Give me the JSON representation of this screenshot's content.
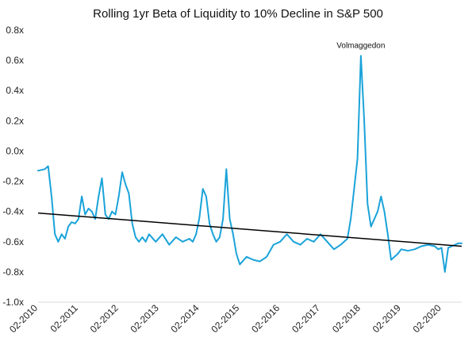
{
  "chart_data": {
    "type": "line",
    "title": "Rolling 1yr Beta of Liquidity to 10% Decline in S&P 500",
    "xlabel": "",
    "ylabel": "",
    "ylim": [
      -1.0,
      0.8
    ],
    "xlim": [
      "2010-02",
      "2020-08"
    ],
    "y_ticks": [
      0.8,
      0.6,
      0.4,
      0.2,
      0.0,
      -0.2,
      -0.4,
      -0.6,
      -0.8,
      -1.0
    ],
    "y_tick_labels": [
      "0.8x",
      "0.6x",
      "0.4x",
      "0.2x",
      "0.0x",
      "-0.2x",
      "-0.4x",
      "-0.6x",
      "-0.8x",
      "-1.0x"
    ],
    "x_ticks": [
      "2010-02",
      "2011-02",
      "2012-02",
      "2013-02",
      "2014-02",
      "2015-02",
      "2016-02",
      "2017-02",
      "2018-02",
      "2019-02",
      "2020-02"
    ],
    "x_tick_labels": [
      "02-2010",
      "02-2011",
      "02-2012",
      "02-2013",
      "02-2014",
      "02-2015",
      "02-2016",
      "02-2017",
      "02-2018",
      "02-2019",
      "02-2020"
    ],
    "grid": false,
    "legend": "none",
    "series": [
      {
        "color": "#1aa3d9",
        "x": [
          "2010-02",
          "2010-04",
          "2010-05",
          "2010-06",
          "2010-07",
          "2010-08",
          "2010-09",
          "2010-10",
          "2010-11",
          "2010-12",
          "2011-01",
          "2011-02",
          "2011-03",
          "2011-04",
          "2011-05",
          "2011-06",
          "2011-07",
          "2011-08",
          "2011-09",
          "2011-10",
          "2011-11",
          "2011-12",
          "2012-01",
          "2012-02",
          "2012-03",
          "2012-04",
          "2012-05",
          "2012-06",
          "2012-07",
          "2012-08",
          "2012-09",
          "2012-10",
          "2012-11",
          "2013-01",
          "2013-03",
          "2013-05",
          "2013-07",
          "2013-09",
          "2013-11",
          "2013-12",
          "2014-01",
          "2014-02",
          "2014-03",
          "2014-04",
          "2014-05",
          "2014-06",
          "2014-07",
          "2014-08",
          "2014-09",
          "2014-10",
          "2014-11",
          "2014-12",
          "2015-01",
          "2015-02",
          "2015-04",
          "2015-06",
          "2015-08",
          "2015-10",
          "2015-12",
          "2016-02",
          "2016-04",
          "2016-06",
          "2016-08",
          "2016-10",
          "2016-12",
          "2017-02",
          "2017-04",
          "2017-06",
          "2017-08",
          "2017-10",
          "2017-11",
          "2017-12",
          "2018-01",
          "2018-02",
          "2018-03",
          "2018-04",
          "2018-05",
          "2018-06",
          "2018-07",
          "2018-08",
          "2018-09",
          "2018-10",
          "2018-11",
          "2018-12",
          "2019-01",
          "2019-02",
          "2019-04",
          "2019-06",
          "2019-08",
          "2019-10",
          "2019-12",
          "2020-01",
          "2020-02",
          "2020-03",
          "2020-04",
          "2020-05",
          "2020-06",
          "2020-07",
          "2020-08"
        ],
        "values": [
          -0.13,
          -0.12,
          -0.1,
          -0.3,
          -0.55,
          -0.6,
          -0.55,
          -0.58,
          -0.5,
          -0.47,
          -0.48,
          -0.45,
          -0.3,
          -0.42,
          -0.38,
          -0.4,
          -0.45,
          -0.3,
          -0.18,
          -0.42,
          -0.45,
          -0.4,
          -0.42,
          -0.3,
          -0.14,
          -0.22,
          -0.28,
          -0.48,
          -0.57,
          -0.6,
          -0.57,
          -0.6,
          -0.55,
          -0.6,
          -0.55,
          -0.62,
          -0.57,
          -0.6,
          -0.58,
          -0.6,
          -0.55,
          -0.44,
          -0.25,
          -0.3,
          -0.48,
          -0.55,
          -0.6,
          -0.57,
          -0.45,
          -0.12,
          -0.45,
          -0.55,
          -0.68,
          -0.75,
          -0.7,
          -0.72,
          -0.73,
          -0.7,
          -0.62,
          -0.6,
          -0.55,
          -0.6,
          -0.62,
          -0.58,
          -0.6,
          -0.55,
          -0.6,
          -0.65,
          -0.62,
          -0.58,
          -0.45,
          -0.25,
          -0.05,
          0.63,
          0.2,
          -0.35,
          -0.5,
          -0.45,
          -0.4,
          -0.3,
          -0.4,
          -0.55,
          -0.72,
          -0.7,
          -0.68,
          -0.65,
          -0.66,
          -0.65,
          -0.63,
          -0.62,
          -0.63,
          -0.65,
          -0.64,
          -0.8,
          -0.64,
          -0.63,
          -0.62,
          -0.61,
          -0.61
        ]
      }
    ],
    "trendline": {
      "color": "#000000",
      "x": [
        "2010-02",
        "2020-08"
      ],
      "values": [
        -0.41,
        -0.63
      ]
    },
    "annotations": [
      {
        "text": "Volmaggedon",
        "x": "2018-02",
        "y": 0.63
      }
    ]
  }
}
